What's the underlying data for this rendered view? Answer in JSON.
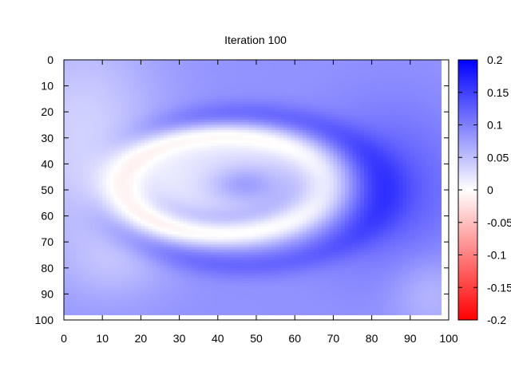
{
  "chart_data": {
    "type": "heatmap",
    "title": "Iteration 100",
    "xlabel": "",
    "ylabel": "",
    "xlim": [
      0,
      100
    ],
    "ylim": [
      0,
      100
    ],
    "y_reversed": true,
    "x_ticks": [
      0,
      10,
      20,
      30,
      40,
      50,
      60,
      70,
      80,
      90,
      100
    ],
    "y_ticks": [
      0,
      10,
      20,
      30,
      40,
      50,
      60,
      70,
      80,
      90,
      100
    ],
    "grid": false,
    "data_extent": {
      "x": [
        0,
        98
      ],
      "y": [
        0,
        98
      ]
    },
    "colorbar": {
      "range": [
        -0.2,
        0.2
      ],
      "ticks": [
        "0.2",
        "0.15",
        "0.1",
        "0.05",
        "0",
        "-0.05",
        "-0.1",
        "-0.15",
        "-0.2"
      ],
      "colors": {
        "low": "#ff0000",
        "mid": "#ffffff",
        "high": "#0000ff"
      }
    },
    "features": [
      {
        "kind": "background",
        "value": 0.085
      },
      {
        "kind": "blob",
        "cx": 5,
        "cy": 30,
        "rx": 20,
        "ry": 45,
        "value": -0.05
      },
      {
        "kind": "blob",
        "cx": 14,
        "cy": 78,
        "rx": 14,
        "ry": 14,
        "value": -0.025
      },
      {
        "kind": "blob",
        "cx": 85,
        "cy": 50,
        "rx": 18,
        "ry": 30,
        "value": 0.045
      },
      {
        "kind": "blob",
        "cx": 95,
        "cy": 90,
        "rx": 10,
        "ry": 15,
        "value": -0.03
      },
      {
        "kind": "ring",
        "cx": 41,
        "cy": 48,
        "rx": 27,
        "ry": 19,
        "width": 0.28,
        "value": -0.085
      },
      {
        "kind": "halo",
        "cx": 47,
        "cy": 50,
        "rx": 36,
        "ry": 29,
        "width": 0.18,
        "value": 0.035
      },
      {
        "kind": "core",
        "cx": 41,
        "cy": 46,
        "rx": 21,
        "ry": 15,
        "value": -0.06
      },
      {
        "kind": "blob",
        "cx": 47,
        "cy": 48,
        "rx": 9,
        "ry": 7,
        "value": 0.05
      }
    ]
  }
}
